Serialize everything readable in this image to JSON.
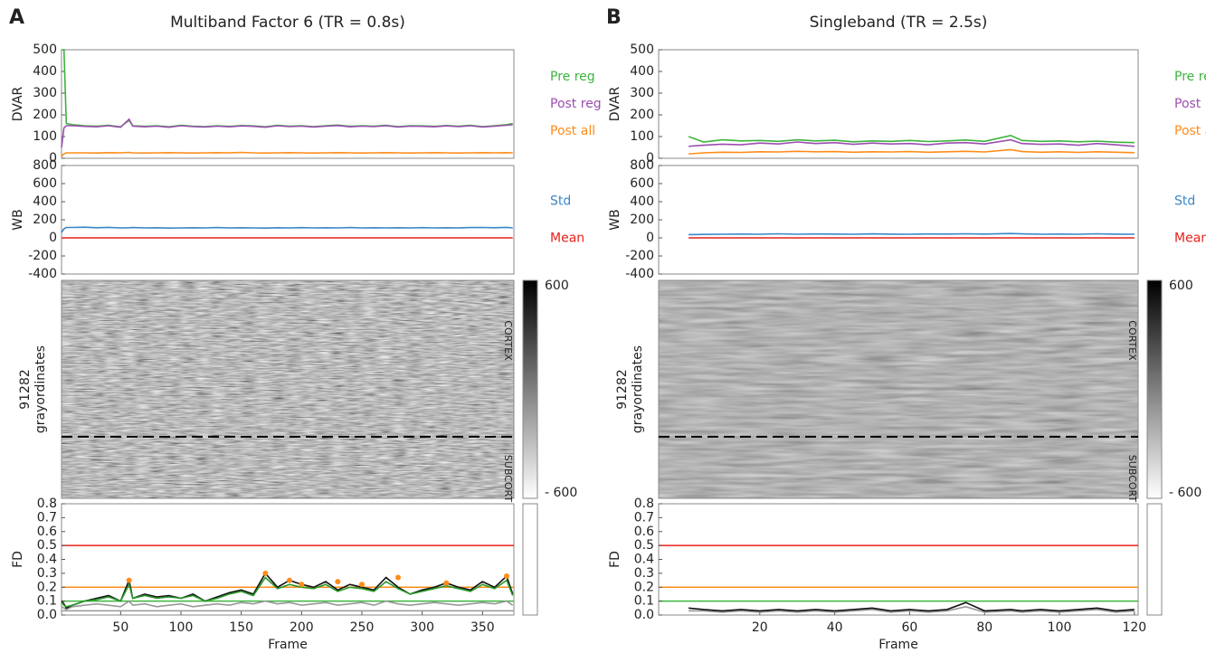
{
  "chart_data": [
    {
      "type": "line",
      "panel_label": "A",
      "title": "Multiband Factor 6 (TR = 0.8s)",
      "ylabel": "DVAR",
      "xlim": [
        1,
        376
      ],
      "ylim": [
        0,
        500
      ],
      "yticks": [
        0,
        100,
        200,
        300,
        400,
        500
      ],
      "x": [
        1,
        3,
        5,
        10,
        20,
        30,
        40,
        50,
        57,
        60,
        70,
        80,
        90,
        100,
        110,
        120,
        130,
        140,
        150,
        160,
        170,
        180,
        190,
        200,
        210,
        220,
        230,
        240,
        250,
        260,
        270,
        280,
        290,
        300,
        310,
        320,
        330,
        340,
        350,
        360,
        370,
        375
      ],
      "series": [
        {
          "name": "Pre reg",
          "color": "#3cb43c",
          "values": [
            500,
            500,
            160,
            155,
            150,
            148,
            152,
            145,
            175,
            150,
            147,
            150,
            145,
            152,
            148,
            146,
            150,
            147,
            151,
            149,
            145,
            152,
            148,
            150,
            146,
            150,
            153,
            147,
            150,
            148,
            152,
            146,
            150,
            149,
            147,
            151,
            148,
            152,
            146,
            150,
            155,
            160
          ]
        },
        {
          "name": "Post reg",
          "color": "#9b4fb0",
          "values": [
            50,
            140,
            150,
            150,
            147,
            145,
            150,
            143,
            180,
            148,
            145,
            148,
            143,
            150,
            146,
            144,
            148,
            145,
            149,
            147,
            143,
            150,
            146,
            148,
            144,
            148,
            151,
            145,
            148,
            146,
            150,
            144,
            148,
            147,
            145,
            149,
            146,
            150,
            144,
            148,
            152,
            155
          ]
        },
        {
          "name": "Post all",
          "color": "#ff8c1a",
          "values": [
            10,
            20,
            25,
            25,
            25,
            24,
            26,
            25,
            27,
            25,
            24,
            25,
            26,
            25,
            24,
            25,
            26,
            25,
            27,
            25,
            24,
            25,
            26,
            25,
            24,
            25,
            26,
            25,
            24,
            25,
            26,
            25,
            24,
            25,
            26,
            25,
            24,
            25,
            26,
            25,
            26,
            25
          ]
        }
      ]
    },
    {
      "type": "line",
      "ylabel": "WB",
      "xlim": [
        1,
        376
      ],
      "ylim": [
        -400,
        800
      ],
      "yticks": [
        -400,
        -200,
        0,
        200,
        400,
        600,
        800
      ],
      "x": [
        1,
        3,
        5,
        10,
        20,
        30,
        40,
        50,
        57,
        60,
        70,
        80,
        90,
        100,
        110,
        120,
        130,
        140,
        150,
        160,
        170,
        180,
        190,
        200,
        210,
        220,
        230,
        240,
        250,
        260,
        270,
        280,
        290,
        300,
        310,
        320,
        330,
        340,
        350,
        360,
        370,
        375
      ],
      "series": [
        {
          "name": "Std",
          "color": "#3a86c8",
          "values": [
            60,
            100,
            115,
            115,
            118,
            112,
            116,
            110,
            112,
            114,
            110,
            112,
            108,
            110,
            112,
            110,
            114,
            110,
            112,
            110,
            108,
            112,
            110,
            113,
            110,
            112,
            110,
            114,
            110,
            112,
            110,
            112,
            110,
            113,
            110,
            112,
            110,
            114,
            115,
            112,
            116,
            110
          ]
        },
        {
          "name": "Mean",
          "color": "#e8201a",
          "values": [
            0,
            0,
            0,
            0,
            0,
            0,
            0,
            0,
            0,
            0,
            0,
            0,
            0,
            0,
            0,
            0,
            0,
            0,
            0,
            0,
            0,
            0,
            0,
            0,
            0,
            0,
            0,
            0,
            0,
            0,
            0,
            0,
            0,
            0,
            0,
            0,
            0,
            0,
            0,
            0,
            0,
            0
          ]
        }
      ]
    },
    {
      "type": "heatmap",
      "ylabel": [
        "91282",
        "grayordinates"
      ],
      "ylim": [
        0,
        91282
      ],
      "divider": 65500,
      "regions": [
        "CORTEX",
        "SUBCORT"
      ],
      "clim": [
        -600,
        600
      ],
      "cticks": [
        600,
        {
          "value": -600,
          "label": "- 600"
        }
      ],
      "texture": "fine"
    },
    {
      "type": "line",
      "ylabel": "FD",
      "xlabel": "Frame",
      "xlim": [
        1,
        376
      ],
      "xticks": [
        50,
        100,
        150,
        200,
        250,
        300,
        350
      ],
      "ylim": [
        0,
        0.8
      ],
      "yticks": [
        {
          "value": 0,
          "label": "0.0"
        },
        0.1,
        0.2,
        0.3,
        0.4,
        0.5,
        0.6,
        0.7,
        0.8
      ],
      "hlines": [
        {
          "value": 0.5,
          "color": "#e8201a"
        },
        {
          "value": 0.2,
          "color": "#ff8c1a"
        },
        {
          "value": 0.1,
          "color": "#3cb43c"
        },
        {
          "value": 0.03,
          "color": "#999999"
        }
      ],
      "x": [
        1,
        3,
        5,
        10,
        20,
        30,
        40,
        50,
        57,
        60,
        70,
        80,
        90,
        100,
        110,
        120,
        130,
        140,
        150,
        160,
        170,
        180,
        190,
        200,
        210,
        220,
        230,
        240,
        250,
        260,
        270,
        280,
        290,
        300,
        310,
        320,
        330,
        340,
        350,
        360,
        370,
        375
      ],
      "series": [
        {
          "color": "#999999",
          "values": [
            0.06,
            0.05,
            0.04,
            0.06,
            0.07,
            0.08,
            0.07,
            0.06,
            0.1,
            0.07,
            0.08,
            0.06,
            0.07,
            0.08,
            0.06,
            0.07,
            0.08,
            0.07,
            0.09,
            0.08,
            0.1,
            0.08,
            0.09,
            0.07,
            0.08,
            0.09,
            0.07,
            0.08,
            0.09,
            0.07,
            0.1,
            0.08,
            0.07,
            0.08,
            0.09,
            0.08,
            0.07,
            0.08,
            0.09,
            0.08,
            0.1,
            0.07
          ]
        },
        {
          "color": "#111111",
          "values": [
            0.1,
            0.08,
            0.05,
            0.07,
            0.1,
            0.12,
            0.14,
            0.1,
            0.25,
            0.12,
            0.15,
            0.13,
            0.14,
            0.12,
            0.15,
            0.1,
            0.13,
            0.16,
            0.18,
            0.15,
            0.3,
            0.2,
            0.25,
            0.22,
            0.2,
            0.24,
            0.18,
            0.22,
            0.2,
            0.18,
            0.27,
            0.2,
            0.15,
            0.18,
            0.2,
            0.23,
            0.2,
            0.18,
            0.24,
            0.2,
            0.28,
            0.15
          ]
        },
        {
          "color": "#2a9a2a",
          "values": [
            0.09,
            0.07,
            0.06,
            0.07,
            0.1,
            0.11,
            0.13,
            0.1,
            0.22,
            0.12,
            0.14,
            0.12,
            0.13,
            0.12,
            0.14,
            0.1,
            0.12,
            0.15,
            0.17,
            0.14,
            0.27,
            0.19,
            0.22,
            0.2,
            0.19,
            0.22,
            0.17,
            0.2,
            0.19,
            0.17,
            0.24,
            0.19,
            0.15,
            0.17,
            0.19,
            0.21,
            0.19,
            0.17,
            0.22,
            0.19,
            0.25,
            0.14
          ]
        },
        {
          "style": "dots",
          "color": "#ff8c1a",
          "x": [
            57,
            170,
            190,
            200,
            230,
            250,
            280,
            320,
            370
          ],
          "values": [
            0.25,
            0.3,
            0.25,
            0.22,
            0.24,
            0.22,
            0.27,
            0.23,
            0.28
          ]
        }
      ]
    },
    {
      "type": "line",
      "panel_label": "B",
      "title": "Singleband (TR = 2.5s)",
      "ylabel": "DVAR",
      "xlim": [
        -7,
        121
      ],
      "ylim": [
        0,
        500
      ],
      "yticks": [
        0,
        100,
        200,
        300,
        400,
        500
      ],
      "x": [
        1,
        5,
        10,
        15,
        20,
        25,
        30,
        35,
        40,
        45,
        50,
        55,
        60,
        65,
        70,
        75,
        80,
        87,
        90,
        95,
        100,
        105,
        110,
        115,
        120
      ],
      "series": [
        {
          "name": "Pre reg",
          "color": "#3cb43c",
          "values": [
            100,
            75,
            85,
            80,
            82,
            78,
            85,
            80,
            83,
            76,
            80,
            78,
            82,
            77,
            80,
            84,
            78,
            105,
            82,
            78,
            80,
            76,
            79,
            74,
            72
          ]
        },
        {
          "name": "Post reg",
          "color": "#9b4fb0",
          "values": [
            55,
            60,
            65,
            62,
            70,
            66,
            75,
            68,
            72,
            64,
            70,
            66,
            68,
            62,
            70,
            72,
            66,
            85,
            68,
            64,
            66,
            60,
            68,
            62,
            55
          ]
        },
        {
          "name": "Post all",
          "color": "#ff8c1a",
          "values": [
            20,
            25,
            28,
            27,
            30,
            29,
            32,
            30,
            31,
            28,
            30,
            29,
            31,
            28,
            30,
            32,
            29,
            40,
            31,
            28,
            30,
            27,
            30,
            28,
            26
          ]
        }
      ]
    },
    {
      "type": "line",
      "ylabel": "WB",
      "xlim": [
        -7,
        121
      ],
      "ylim": [
        -400,
        800
      ],
      "yticks": [
        -400,
        -200,
        0,
        200,
        400,
        600,
        800
      ],
      "x": [
        1,
        5,
        10,
        15,
        20,
        25,
        30,
        35,
        40,
        45,
        50,
        55,
        60,
        65,
        70,
        75,
        80,
        87,
        90,
        95,
        100,
        105,
        110,
        115,
        120
      ],
      "series": [
        {
          "name": "Std",
          "color": "#3a86c8",
          "values": [
            35,
            38,
            40,
            42,
            40,
            45,
            40,
            43,
            42,
            40,
            44,
            41,
            40,
            43,
            42,
            45,
            42,
            48,
            44,
            40,
            42,
            40,
            45,
            41,
            40
          ]
        },
        {
          "name": "Mean",
          "color": "#e8201a",
          "values": [
            0,
            0,
            0,
            0,
            0,
            0,
            0,
            0,
            0,
            0,
            0,
            0,
            0,
            0,
            0,
            0,
            0,
            0,
            0,
            0,
            0,
            0,
            0,
            0,
            0
          ]
        }
      ]
    },
    {
      "type": "heatmap",
      "ylabel": [
        "91282",
        "grayordinates"
      ],
      "ylim": [
        0,
        91282
      ],
      "divider": 65500,
      "regions": [
        "CORTEX",
        "SUBCORT"
      ],
      "clim": [
        -600,
        600
      ],
      "cticks": [
        600,
        {
          "value": -600,
          "label": "- 600"
        }
      ],
      "texture": "smooth"
    },
    {
      "type": "line",
      "ylabel": "FD",
      "xlabel": "Frame",
      "xlim": [
        -7,
        121
      ],
      "xticks": [
        20,
        40,
        60,
        80,
        100,
        120
      ],
      "ylim": [
        0,
        0.8
      ],
      "yticks": [
        {
          "value": 0,
          "label": "0.0"
        },
        0.1,
        0.2,
        0.3,
        0.4,
        0.5,
        0.6,
        0.7,
        0.8
      ],
      "hlines": [
        {
          "value": 0.5,
          "color": "#e8201a"
        },
        {
          "value": 0.2,
          "color": "#ff8c1a"
        },
        {
          "value": 0.1,
          "color": "#3cb43c"
        }
      ],
      "x": [
        1,
        5,
        10,
        15,
        20,
        25,
        30,
        35,
        40,
        45,
        50,
        55,
        60,
        65,
        70,
        75,
        80,
        87,
        90,
        95,
        100,
        105,
        110,
        115,
        120
      ],
      "series": [
        {
          "color": "#999999",
          "values": [
            0.03,
            0.03,
            0.02,
            0.03,
            0.02,
            0.03,
            0.02,
            0.03,
            0.02,
            0.03,
            0.04,
            0.02,
            0.03,
            0.02,
            0.03,
            0.06,
            0.02,
            0.03,
            0.02,
            0.03,
            0.02,
            0.03,
            0.04,
            0.02,
            0.03
          ]
        },
        {
          "color": "#111111",
          "values": [
            0.05,
            0.04,
            0.03,
            0.04,
            0.03,
            0.04,
            0.03,
            0.04,
            0.03,
            0.04,
            0.05,
            0.03,
            0.04,
            0.03,
            0.04,
            0.09,
            0.03,
            0.04,
            0.03,
            0.04,
            0.03,
            0.04,
            0.05,
            0.03,
            0.04
          ]
        }
      ]
    }
  ]
}
